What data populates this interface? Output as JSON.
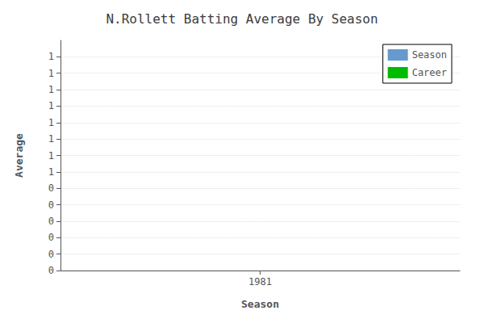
{
  "chart_data": {
    "type": "line",
    "title": "N.Rollett Batting Average By Season",
    "x_label": "Season",
    "y_label": "Average",
    "x": [],
    "series": [
      {
        "name": "Season",
        "color": "#6699CC",
        "values": []
      },
      {
        "name": "Career",
        "color": "#00BB00",
        "values": []
      }
    ],
    "xlim": [
      1980.5,
      1981.5
    ],
    "xticks": [
      1981
    ],
    "ylim": [
      0.0,
      1.4
    ],
    "yticks": [
      {
        "value": 0.0,
        "label": "0"
      },
      {
        "value": 0.1,
        "label": "0"
      },
      {
        "value": 0.2,
        "label": "0"
      },
      {
        "value": 0.3,
        "label": "0"
      },
      {
        "value": 0.4,
        "label": "0"
      },
      {
        "value": 0.5,
        "label": "0"
      },
      {
        "value": 0.6,
        "label": "1"
      },
      {
        "value": 0.7,
        "label": "1"
      },
      {
        "value": 0.8,
        "label": "1"
      },
      {
        "value": 0.9,
        "label": "1"
      },
      {
        "value": 1.0,
        "label": "1"
      },
      {
        "value": 1.1,
        "label": "1"
      },
      {
        "value": 1.2,
        "label": "1"
      },
      {
        "value": 1.3,
        "label": "1"
      }
    ],
    "grid": "y",
    "legend": "upper right"
  }
}
